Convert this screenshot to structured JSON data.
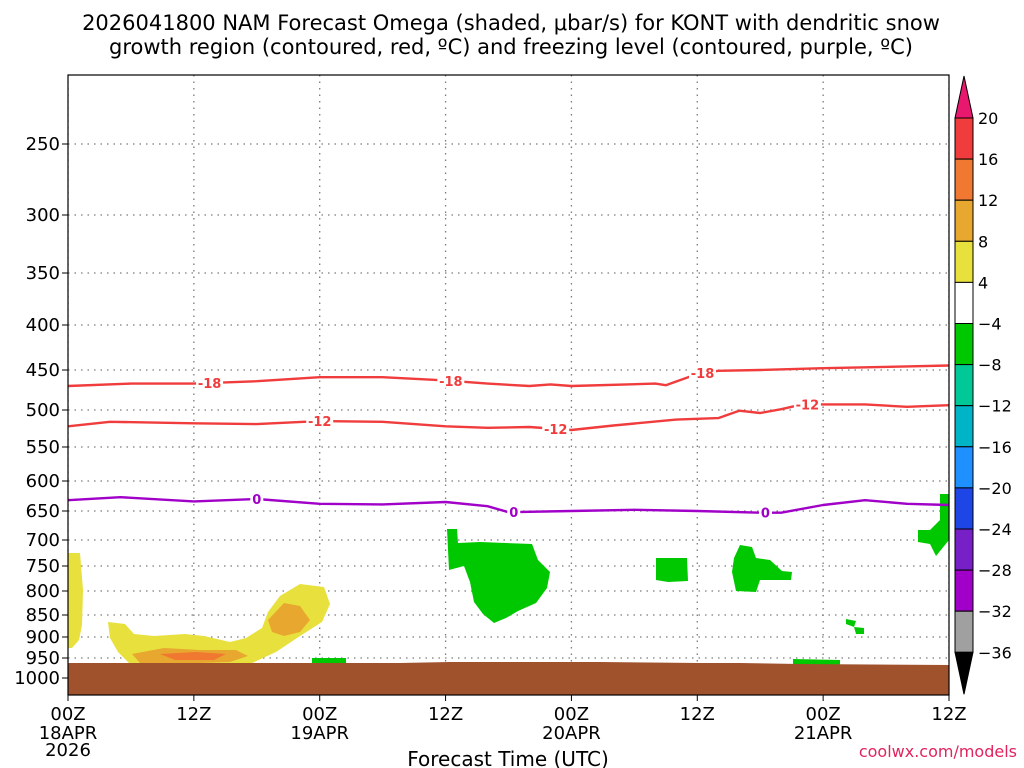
{
  "chart_data": {
    "type": "heatmap",
    "title_line1": "2026041800 NAM Forecast Omega (shaded, μbar/s) for KONT with dendritic snow",
    "title_line2": "growth region (contoured, red, ºC) and freezing level (contoured, purple, ºC)",
    "xlabel": "Forecast Time (UTC)",
    "ylabel": "",
    "credit": "coolwx.com/models",
    "x_range_hours": [
      0,
      84
    ],
    "x_ticks": [
      {
        "hour": 0,
        "label": "00Z",
        "date": "18APR",
        "year": "2026"
      },
      {
        "hour": 12,
        "label": "12Z",
        "date": "",
        "year": ""
      },
      {
        "hour": 24,
        "label": "00Z",
        "date": "19APR",
        "year": ""
      },
      {
        "hour": 36,
        "label": "12Z",
        "date": "",
        "year": ""
      },
      {
        "hour": 48,
        "label": "00Z",
        "date": "20APR",
        "year": ""
      },
      {
        "hour": 60,
        "label": "12Z",
        "date": "",
        "year": ""
      },
      {
        "hour": 72,
        "label": "00Z",
        "date": "21APR",
        "year": ""
      },
      {
        "hour": 84,
        "label": "12Z",
        "date": "",
        "year": ""
      }
    ],
    "y_range_hpa": [
      1030,
      200
    ],
    "y_ticks": [
      250,
      300,
      350,
      400,
      450,
      500,
      550,
      600,
      650,
      700,
      750,
      800,
      850,
      900,
      950,
      1000
    ],
    "grid": true,
    "contours": [
      {
        "name": "-18 ºC",
        "label": "-18",
        "color": "#f03c3c",
        "label_hours": [
          13.5,
          36.5,
          60.5
        ],
        "points": [
          [
            0,
            470
          ],
          [
            6,
            467
          ],
          [
            12,
            467
          ],
          [
            18,
            464
          ],
          [
            24,
            459
          ],
          [
            30,
            459
          ],
          [
            36,
            463
          ],
          [
            40,
            467
          ],
          [
            44,
            470
          ],
          [
            46,
            468
          ],
          [
            48,
            470
          ],
          [
            56,
            467
          ],
          [
            57,
            469
          ],
          [
            60,
            455
          ],
          [
            62,
            451
          ],
          [
            66,
            450
          ],
          [
            72,
            448
          ],
          [
            80,
            446
          ],
          [
            84,
            445
          ]
        ]
      },
      {
        "name": "-12 ºC",
        "label": "-12",
        "color": "#f03c3c",
        "label_hours": [
          24,
          46.5,
          70.5
        ],
        "points": [
          [
            0,
            522
          ],
          [
            4,
            516
          ],
          [
            12,
            518
          ],
          [
            18,
            519
          ],
          [
            24,
            515
          ],
          [
            30,
            516
          ],
          [
            36,
            522
          ],
          [
            40,
            524
          ],
          [
            44,
            523
          ],
          [
            48,
            527
          ],
          [
            52,
            521
          ],
          [
            58,
            513
          ],
          [
            62,
            511
          ],
          [
            64,
            501
          ],
          [
            66,
            504
          ],
          [
            68,
            499
          ],
          [
            70,
            493
          ],
          [
            76,
            493
          ],
          [
            80,
            496
          ],
          [
            84,
            494
          ]
        ]
      },
      {
        "name": "0 ºC freezing level",
        "label": "0",
        "color": "#a000c8",
        "label_hours": [
          18,
          42.5,
          66.5
        ],
        "points": [
          [
            0,
            632
          ],
          [
            5,
            627
          ],
          [
            12,
            634
          ],
          [
            18,
            630
          ],
          [
            24,
            638
          ],
          [
            30,
            639
          ],
          [
            36,
            635
          ],
          [
            40,
            642
          ],
          [
            42,
            652
          ],
          [
            48,
            650
          ],
          [
            54,
            648
          ],
          [
            60,
            650
          ],
          [
            66,
            653
          ],
          [
            68,
            653
          ],
          [
            72,
            640
          ],
          [
            76,
            632
          ],
          [
            80,
            638
          ],
          [
            84,
            640
          ]
        ]
      }
    ],
    "omega_regions": [
      {
        "name": "rising motion 8-12 μbar/s",
        "color": "#e8e03c",
        "center_hour": 26,
        "center_hpa": 830
      },
      {
        "name": "rising motion 4-12 μbar/s",
        "color": "#e8b43c",
        "center_hour": 10,
        "center_hpa": 948
      },
      {
        "name": "sinking motion -4 to -8 μbar/s",
        "color": "#00c800",
        "center_hour": 43,
        "center_hpa": 760
      },
      {
        "name": "sinking motion -4 to -8 μbar/s",
        "color": "#00c800",
        "center_hour": 63,
        "center_hpa": 745
      },
      {
        "name": "sinking motion -4 to -8 μbar/s",
        "color": "#00c800",
        "center_hour": 67,
        "center_hpa": 760
      }
    ],
    "terrain_color": "#a0522d",
    "terrain_top_hpa": 970,
    "colorbar": {
      "labels": [
        "20",
        "16",
        "12",
        "8",
        "4",
        "−4",
        "−8",
        "−12",
        "−16",
        "−20",
        "−24",
        "−28",
        "−32",
        "−36"
      ],
      "colors": [
        "#e8186e",
        "#f03c3c",
        "#f07830",
        "#e8a830",
        "#e8e03c",
        "#ffffff",
        "#00c800",
        "#00c896",
        "#00b4c8",
        "#1e90ff",
        "#1e46e6",
        "#7820c8",
        "#a000c8",
        "#a0a0a0",
        "#000000"
      ]
    }
  }
}
